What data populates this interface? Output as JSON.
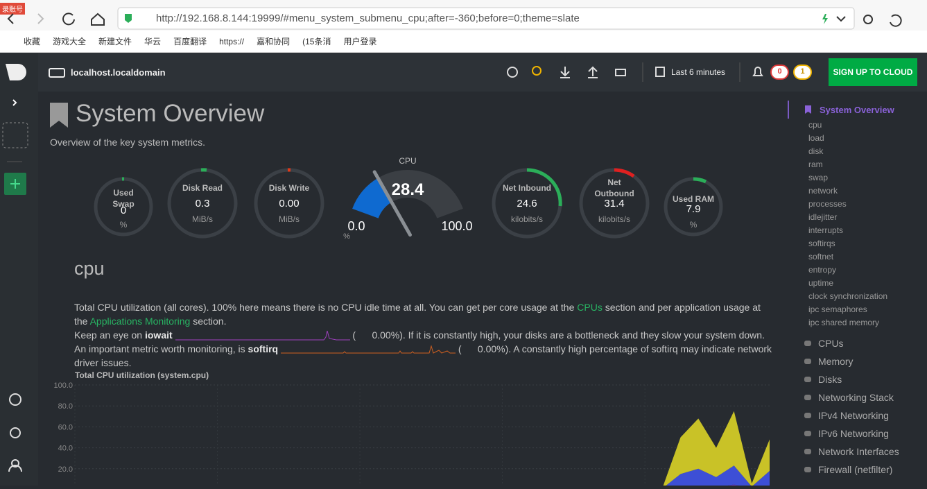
{
  "browser": {
    "badge": "录账号",
    "url": "http://192.168.8.144:19999/#menu_system_submenu_cpu;after=-360;before=0;theme=slate",
    "bookmarks": [
      "收藏",
      "游戏大全",
      "新建文件",
      "华云",
      "百度翻译",
      "https://",
      "嘉和协同",
      "(15条消",
      "用户登录"
    ]
  },
  "header": {
    "host": "localhost.localdomain",
    "timeframe": "Last 6 minutes",
    "alarms_critical": 0,
    "alarms_warning": 1,
    "cloud_button": "SIGN UP TO CLOUD"
  },
  "page": {
    "title": "System Overview",
    "subtitle": "Overview of the key system metrics."
  },
  "gauges": {
    "swap": {
      "label": "Used Swap",
      "value": "0",
      "unit": "%"
    },
    "disk_read": {
      "label": "Disk Read",
      "value": "0.3",
      "unit": "MiB/s"
    },
    "disk_write": {
      "label": "Disk Write",
      "value": "0.00",
      "unit": "MiB/s"
    },
    "cpu": {
      "label": "CPU",
      "value": "28.4",
      "min": "0.0",
      "max": "100.0",
      "unit": "%"
    },
    "net_in": {
      "label": "Net Inbound",
      "value": "24.6",
      "unit": "kilobits/s"
    },
    "net_out": {
      "label": "Net Outbound",
      "value": "31.4",
      "unit": "kilobits/s"
    },
    "ram": {
      "label": "Used RAM",
      "value": "7.9",
      "unit": "%"
    }
  },
  "section": {
    "heading": "cpu",
    "intro_before": "Total CPU utilization (all cores). 100% here means there is no CPU idle time at all. You can get per core usage at the ",
    "link_cpus": "CPUs",
    "intro_middle": " section and per application usage at the ",
    "link_apps": "Applications Monitoring",
    "intro_after": " section.",
    "iowait_before": "Keep an eye on ",
    "iowait_name": "iowait",
    "iowait_open": " (",
    "iowait_value": "0.00%",
    "iowait_after": "). If it is constantly high, your disks are a bottleneck and they slow your system down.",
    "softirq_before": "An important metric worth monitoring, is ",
    "softirq_name": "softirq",
    "softirq_open": " (",
    "softirq_value": "0.00%",
    "softirq_after": "). A constantly high percentage of softirq may indicate network driver issues."
  },
  "chart_data": {
    "type": "area",
    "title": "Total CPU utilization (system.cpu)",
    "stacked": true,
    "categories": [
      null,
      null,
      null,
      null,
      null,
      null,
      null,
      null,
      null,
      null,
      null,
      null,
      null,
      null,
      null,
      null,
      null,
      null,
      null,
      null,
      null,
      null,
      null,
      null,
      null,
      null,
      null,
      null,
      null,
      null,
      null,
      null,
      null,
      null,
      null,
      null,
      null,
      null,
      null,
      null
    ],
    "series": [
      {
        "color": "#6d3bc7",
        "values": [
          0.5,
          0.5,
          0.5,
          0.5,
          0.5,
          0.5,
          0.5,
          0.5,
          0.5,
          0.5,
          0.5,
          0.5,
          0.5,
          0.5,
          0.5,
          0.5,
          0.5,
          0.5,
          0.5,
          0.5,
          0.5,
          0.5,
          0.5,
          0.5,
          0.5,
          0.5,
          0.5,
          0.5,
          0.5,
          0.5,
          0.5,
          0.5,
          0.5,
          0.5,
          3,
          4,
          2,
          5,
          1,
          4
        ]
      },
      {
        "color": "#3d4fd6",
        "values": [
          1,
          1,
          1,
          1,
          1,
          1,
          1,
          1,
          1,
          1,
          1,
          1,
          1,
          1,
          1,
          1,
          1,
          1,
          1,
          1,
          1,
          1,
          1,
          1,
          1,
          1,
          1,
          1,
          1,
          1,
          1,
          1,
          1,
          1,
          12,
          16,
          10,
          18,
          2,
          14
        ]
      },
      {
        "color": "#c9c227",
        "values": [
          1,
          1,
          1,
          1,
          1,
          1,
          1,
          1,
          1,
          1,
          1,
          1,
          1,
          1,
          1,
          1,
          1,
          1,
          1,
          1,
          1,
          1,
          1,
          1,
          1,
          1,
          1,
          1,
          1,
          1,
          1,
          1,
          1,
          1,
          35,
          48,
          28,
          52,
          3,
          30
        ]
      }
    ],
    "ylim": [
      0,
      100
    ],
    "yticks": [
      {
        "value": 20,
        "label": "20.0"
      },
      {
        "value": 40,
        "label": "40.0"
      },
      {
        "value": 60,
        "label": "60.0"
      },
      {
        "value": 80,
        "label": "80.0"
      },
      {
        "value": 100,
        "label": "100.0"
      }
    ],
    "grid": true
  },
  "menu": {
    "active": "System Overview",
    "subitems": [
      "cpu",
      "load",
      "disk",
      "ram",
      "swap",
      "network",
      "processes",
      "idlejitter",
      "interrupts",
      "softirqs",
      "softnet",
      "entropy",
      "uptime",
      "clock synchronization",
      "ipc semaphores",
      "ipc shared memory"
    ],
    "sections": [
      "CPUs",
      "Memory",
      "Disks",
      "Networking Stack",
      "IPv4 Networking",
      "IPv6 Networking",
      "Network Interfaces",
      "Firewall (netfilter)"
    ]
  }
}
